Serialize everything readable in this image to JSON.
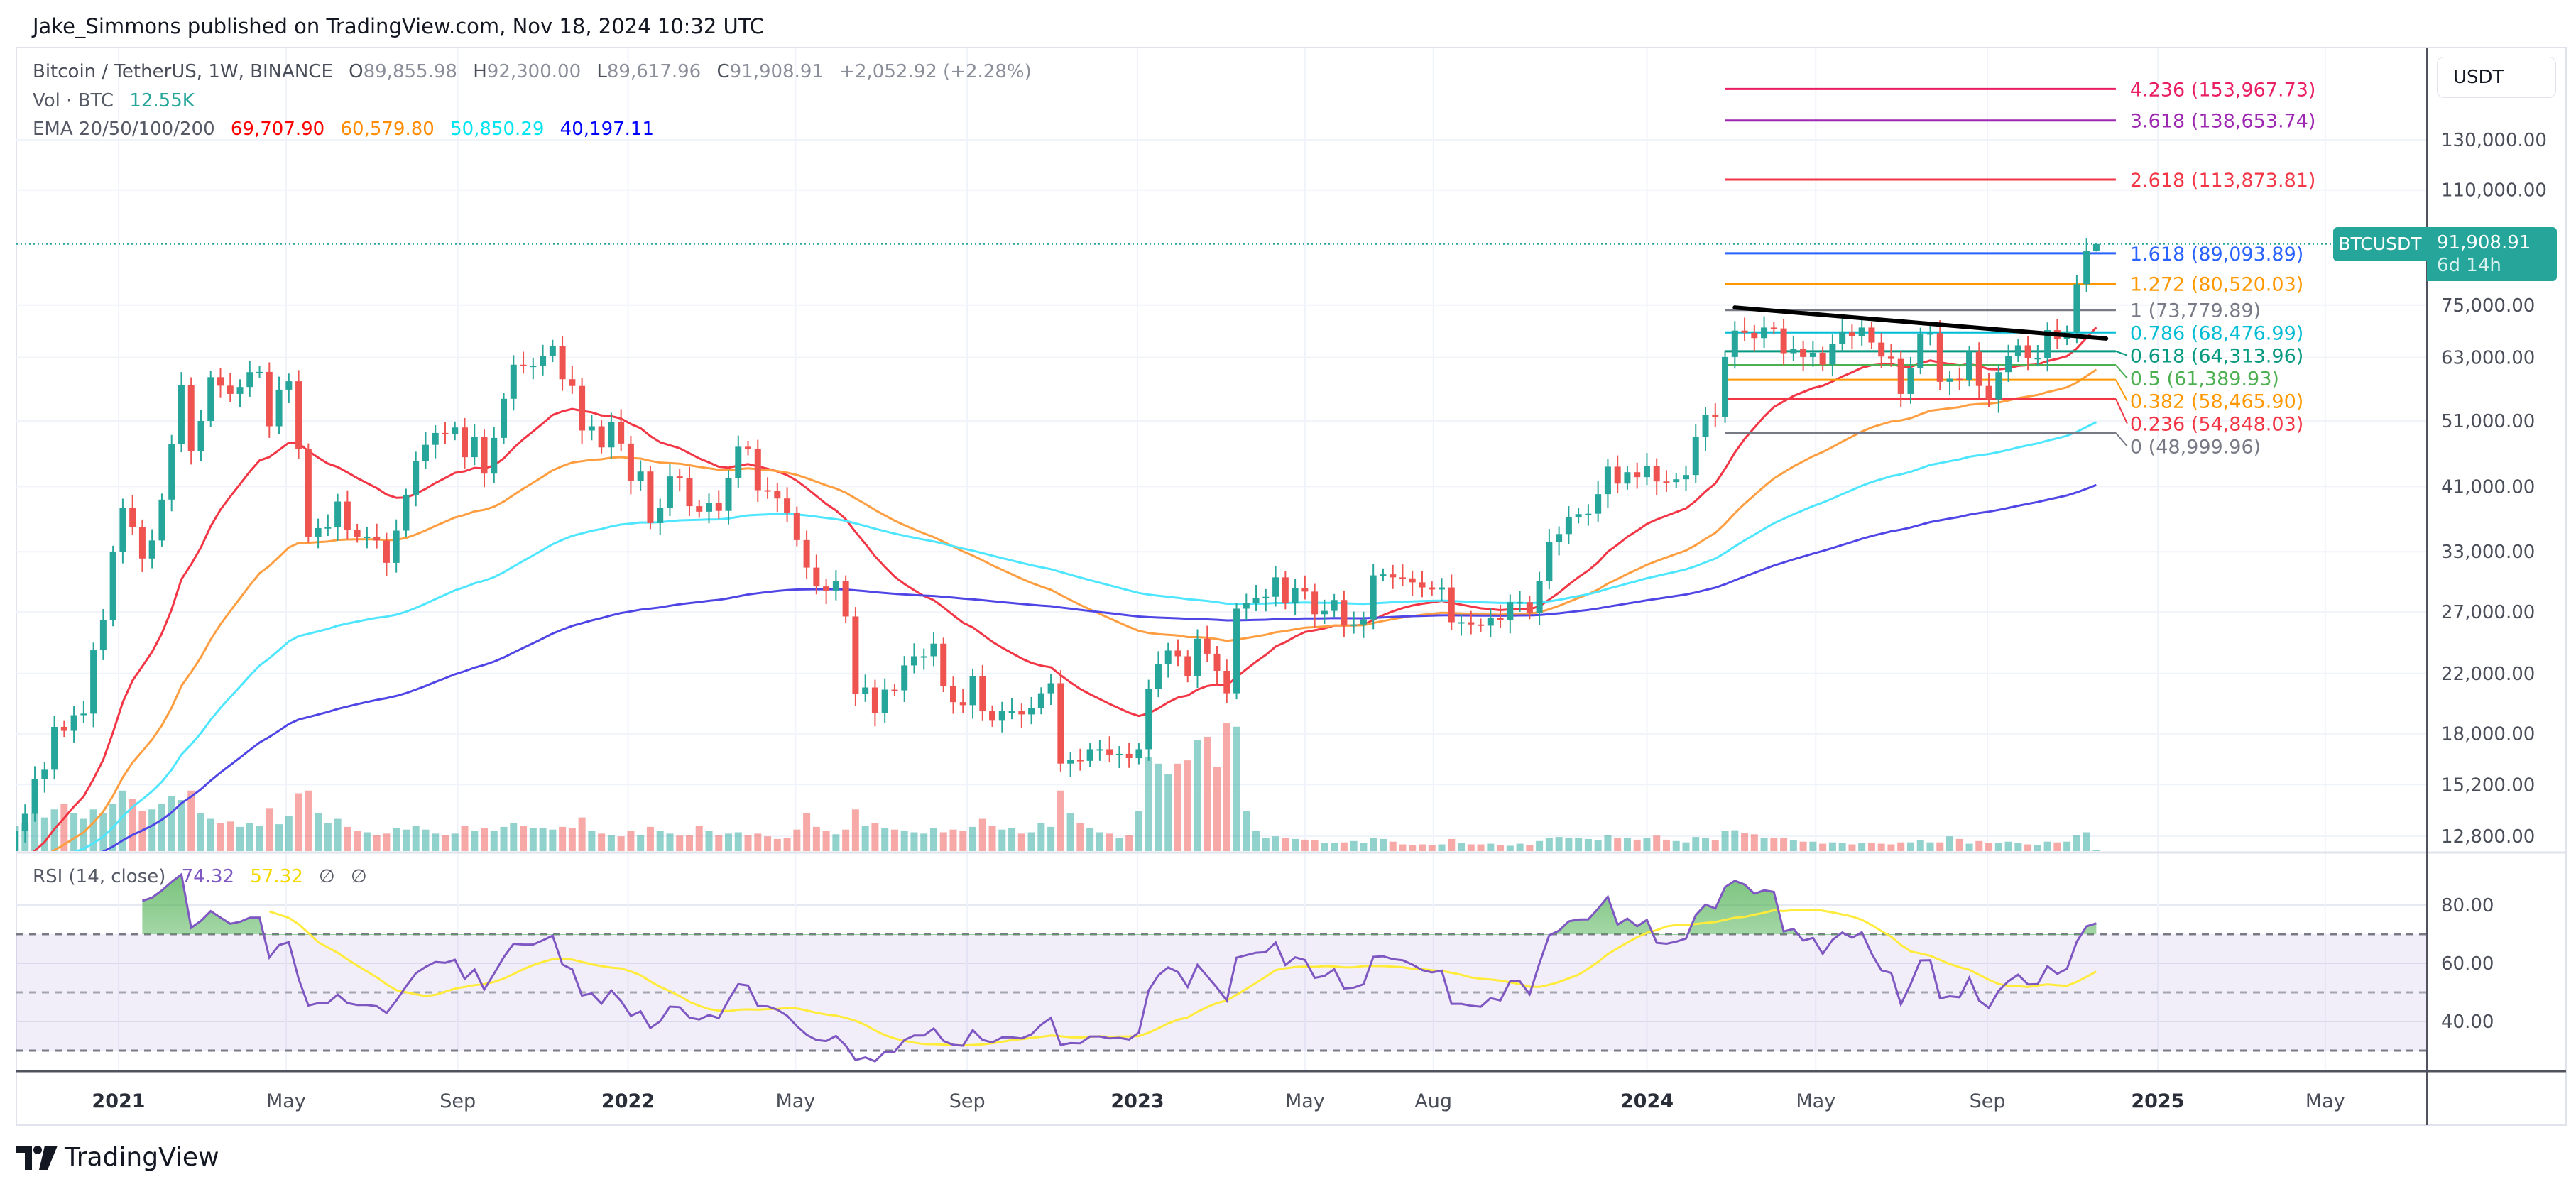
{
  "publisher_line": "Jake_Simmons published on TradingView.com, Nov 18, 2024 10:32 UTC",
  "legend": {
    "symbol": "Bitcoin / TetherUS, 1W, BINANCE",
    "open_key": "O",
    "open": "89,855.98",
    "high_key": "H",
    "high": "92,300.00",
    "low_key": "L",
    "low": "89,617.96",
    "close_key": "C",
    "close": "91,908.91",
    "change": "+2,052.92 (+2.28%)",
    "vol_label": "Vol · BTC",
    "vol_value": "12.55K",
    "ema_label": "EMA 20/50/100/200",
    "ema_values": [
      "69,707.90",
      "60,579.80",
      "50,850.29",
      "40,197.11"
    ],
    "ema_colors": [
      "#ff0000",
      "#ff8c00",
      "#00f0ff",
      "#0000ff"
    ]
  },
  "price_axis": {
    "currency": "USDT",
    "ticks": [
      "130,000.00",
      "110,000.00",
      "75,000.00",
      "63,000.00",
      "51,000.00",
      "41,000.00",
      "33,000.00",
      "27,000.00",
      "22,000.00",
      "18,000.00",
      "15,200.00",
      "12,800.00"
    ],
    "scale": "log"
  },
  "last_price": {
    "symbol": "BTCUSDT",
    "value": "91,908.91",
    "countdown": "6d 14h",
    "color": "#26a69a"
  },
  "time_axis": [
    {
      "label": "2021",
      "date": "2021-01-01",
      "year": true
    },
    {
      "label": "May",
      "date": "2021-05-01"
    },
    {
      "label": "Sep",
      "date": "2021-09-01"
    },
    {
      "label": "2022",
      "date": "2022-01-01",
      "year": true
    },
    {
      "label": "May",
      "date": "2022-05-01"
    },
    {
      "label": "Sep",
      "date": "2022-09-01"
    },
    {
      "label": "2023",
      "date": "2023-01-01",
      "year": true
    },
    {
      "label": "May",
      "date": "2023-05-01"
    },
    {
      "label": "Aug",
      "date": "2023-08-01"
    },
    {
      "label": "2024",
      "date": "2024-01-01",
      "year": true
    },
    {
      "label": "May",
      "date": "2024-05-01"
    },
    {
      "label": "Sep",
      "date": "2024-09-01"
    },
    {
      "label": "2025",
      "date": "2025-01-01",
      "year": true
    },
    {
      "label": "May",
      "date": "2025-05-01"
    }
  ],
  "fib": {
    "start_date": "2024-02-26",
    "end_date": "2024-12-02",
    "levels": [
      {
        "label": "4.236 (153,967.73)",
        "price": 153967.73,
        "color": "#e91e63"
      },
      {
        "label": "3.618 (138,653.74)",
        "price": 138653.74,
        "color": "#9c27b0"
      },
      {
        "label": "2.618 (113,873.81)",
        "price": 113873.81,
        "color": "#f23645"
      },
      {
        "label": "1.618 (89,093.89)",
        "price": 89093.89,
        "color": "#2962ff"
      },
      {
        "label": "1.272 (80,520.03)",
        "price": 80520.03,
        "color": "#ff9800"
      },
      {
        "label": "1 (73,779.89)",
        "price": 73779.89,
        "color": "#787b86"
      },
      {
        "label": "0.786 (68,476.99)",
        "price": 68476.99,
        "color": "#00bcd4"
      },
      {
        "label": "0.618 (64,313.96)",
        "price": 64313.96,
        "color": "#089981"
      },
      {
        "label": "0.5 (61,389.93)",
        "price": 61389.93,
        "color": "#4caf50"
      },
      {
        "label": "0.382 (58,465.90)",
        "price": 58465.9,
        "color": "#ff9800"
      },
      {
        "label": "0.236 (54,848.03)",
        "price": 54848.03,
        "color": "#f23645"
      },
      {
        "label": "0 (48,999.96)",
        "price": 48999.96,
        "color": "#787b86"
      }
    ]
  },
  "trendline": {
    "from": {
      "date": "2024-03-04",
      "price": 74400
    },
    "to": {
      "date": "2024-11-25",
      "price": 67100
    },
    "color": "#000000"
  },
  "rsi": {
    "label": "RSI (14, close)",
    "value": "74.32",
    "ma_value": "57.32",
    "extra": [
      "∅",
      "∅"
    ],
    "line_color": "#7e57c2",
    "ma_color": "#ffeb3b",
    "ticks": [
      "80.00",
      "60.00",
      "40.00"
    ],
    "bands": [
      70,
      50,
      30
    ]
  },
  "colors": {
    "up": "#26a69a",
    "down": "#ef5350"
  },
  "chart_data": {
    "type": "candlestick",
    "interval": "1W",
    "start": "2020-10-19",
    "first_open": 11500,
    "last_candle": {
      "open": 89855.98,
      "high": 92300.0,
      "low": 89617.96,
      "close": 91908.91
    },
    "close": [
      13030,
      13790,
      15480,
      15970,
      18420,
      18180,
      19150,
      19250,
      23770,
      26270,
      33000,
      38150,
      35800,
      32260,
      34260,
      39250,
      47170,
      57480,
      46140,
      51000,
      59000,
      57350,
      55800,
      57100,
      60000,
      60050,
      50100,
      56600,
      58200,
      46400,
      34700,
      35700,
      35800,
      39000,
      35500,
      34700,
      34700,
      34250,
      31800,
      35400,
      39900,
      44600,
      47100,
      49000,
      48800,
      49900,
      45200,
      48300,
      42800,
      48200,
      54900,
      61500,
      61300,
      61300,
      63300,
      65500,
      58600,
      57300,
      49400,
      50100,
      46700,
      50800,
      47300,
      41800,
      43100,
      36300,
      38150,
      42400,
      42200,
      38400,
      37700,
      38800,
      37800,
      42200,
      46800,
      46400,
      40500,
      40400,
      39400,
      37600,
      34300,
      31300,
      29400,
      29000,
      29900,
      26600,
      20550,
      21000,
      19300,
      20850,
      20800,
      22600,
      23300,
      23300,
      24300,
      21100,
      20000,
      19800,
      21800,
      19400,
      18800,
      19400,
      19400,
      19200,
      19600,
      20600,
      21300,
      16300,
      16500,
      16450,
      17100,
      17100,
      16800,
      16840,
      16600,
      17100,
      20880,
      22700,
      23750,
      23300,
      21800,
      24700,
      23500,
      22200,
      20600,
      27300,
      27800,
      28300,
      28400,
      30300,
      27800,
      29200,
      28900,
      26800,
      27100,
      28100,
      25800,
      25900,
      26340,
      30500,
      30600,
      30300,
      30200,
      29800,
      29300,
      29100,
      29300,
      26100,
      26100,
      25900,
      25800,
      26500,
      26300,
      27900,
      27900,
      26900,
      29900,
      34100,
      35000,
      37000,
      37400,
      37450,
      39970,
      43800,
      41400,
      43000,
      42300,
      43900,
      41700,
      41600,
      42000,
      42600,
      48300,
      52100,
      51700,
      63100,
      68900,
      68400,
      67200,
      69600,
      69400,
      63900,
      64900,
      63100,
      64000,
      61500,
      65900,
      68500,
      67700,
      69600,
      66200,
      63200,
      62700,
      55800,
      60800,
      68200,
      68300,
      58100,
      58700,
      58400,
      64200,
      57300,
      54800,
      60000,
      63300,
      65600,
      62800,
      62900,
      69000,
      67000,
      68700,
      80400,
      89850,
      91908.91
    ],
    "volume_k": [
      380,
      420,
      560,
      500,
      620,
      700,
      560,
      480,
      620,
      560,
      700,
      900,
      780,
      600,
      620,
      700,
      820,
      760,
      900,
      560,
      480,
      420,
      440,
      360,
      420,
      380,
      640,
      400,
      520,
      860,
      900,
      560,
      420,
      480,
      360,
      300,
      280,
      240,
      260,
      340,
      320,
      380,
      320,
      260,
      240,
      260,
      380,
      300,
      340,
      300,
      360,
      420,
      380,
      340,
      340,
      320,
      360,
      340,
      500,
      300,
      260,
      240,
      220,
      300,
      240,
      360,
      300,
      260,
      230,
      240,
      380,
      300,
      240,
      260,
      280,
      240,
      260,
      220,
      180,
      200,
      320,
      560,
      360,
      300,
      250,
      320,
      620,
      380,
      420,
      340,
      320,
      300,
      280,
      260,
      340,
      280,
      320,
      300,
      360,
      480,
      380,
      320,
      340,
      260,
      280,
      420,
      360,
      900,
      560,
      420,
      340,
      280,
      260,
      200,
      240,
      600,
      1400,
      1300,
      1150,
      1300,
      1350,
      1650,
      1700,
      1250,
      1900,
      1850,
      600,
      300,
      200,
      220,
      200,
      180,
      170,
      160,
      120,
      120,
      130,
      150,
      120,
      200,
      180,
      140,
      100,
      90,
      100,
      90,
      100,
      180,
      120,
      100,
      100,
      110,
      90,
      80,
      110,
      90,
      150,
      200,
      210,
      200,
      200,
      180,
      160,
      240,
      200,
      190,
      170,
      190,
      230,
      170,
      150,
      130,
      210,
      200,
      160,
      300,
      310,
      270,
      250,
      190,
      200,
      200,
      160,
      140,
      140,
      110,
      130,
      120,
      100,
      120,
      120,
      110,
      100,
      130,
      130,
      160,
      130,
      130,
      220,
      180,
      110,
      150,
      120,
      120,
      140,
      120,
      100,
      90,
      140,
      130,
      140,
      240,
      280,
      12.55
    ],
    "ema_periods": [
      20,
      50,
      100,
      200
    ],
    "rsi_period": 14,
    "rsi_ma_period": 14
  },
  "brand": "TradingView"
}
